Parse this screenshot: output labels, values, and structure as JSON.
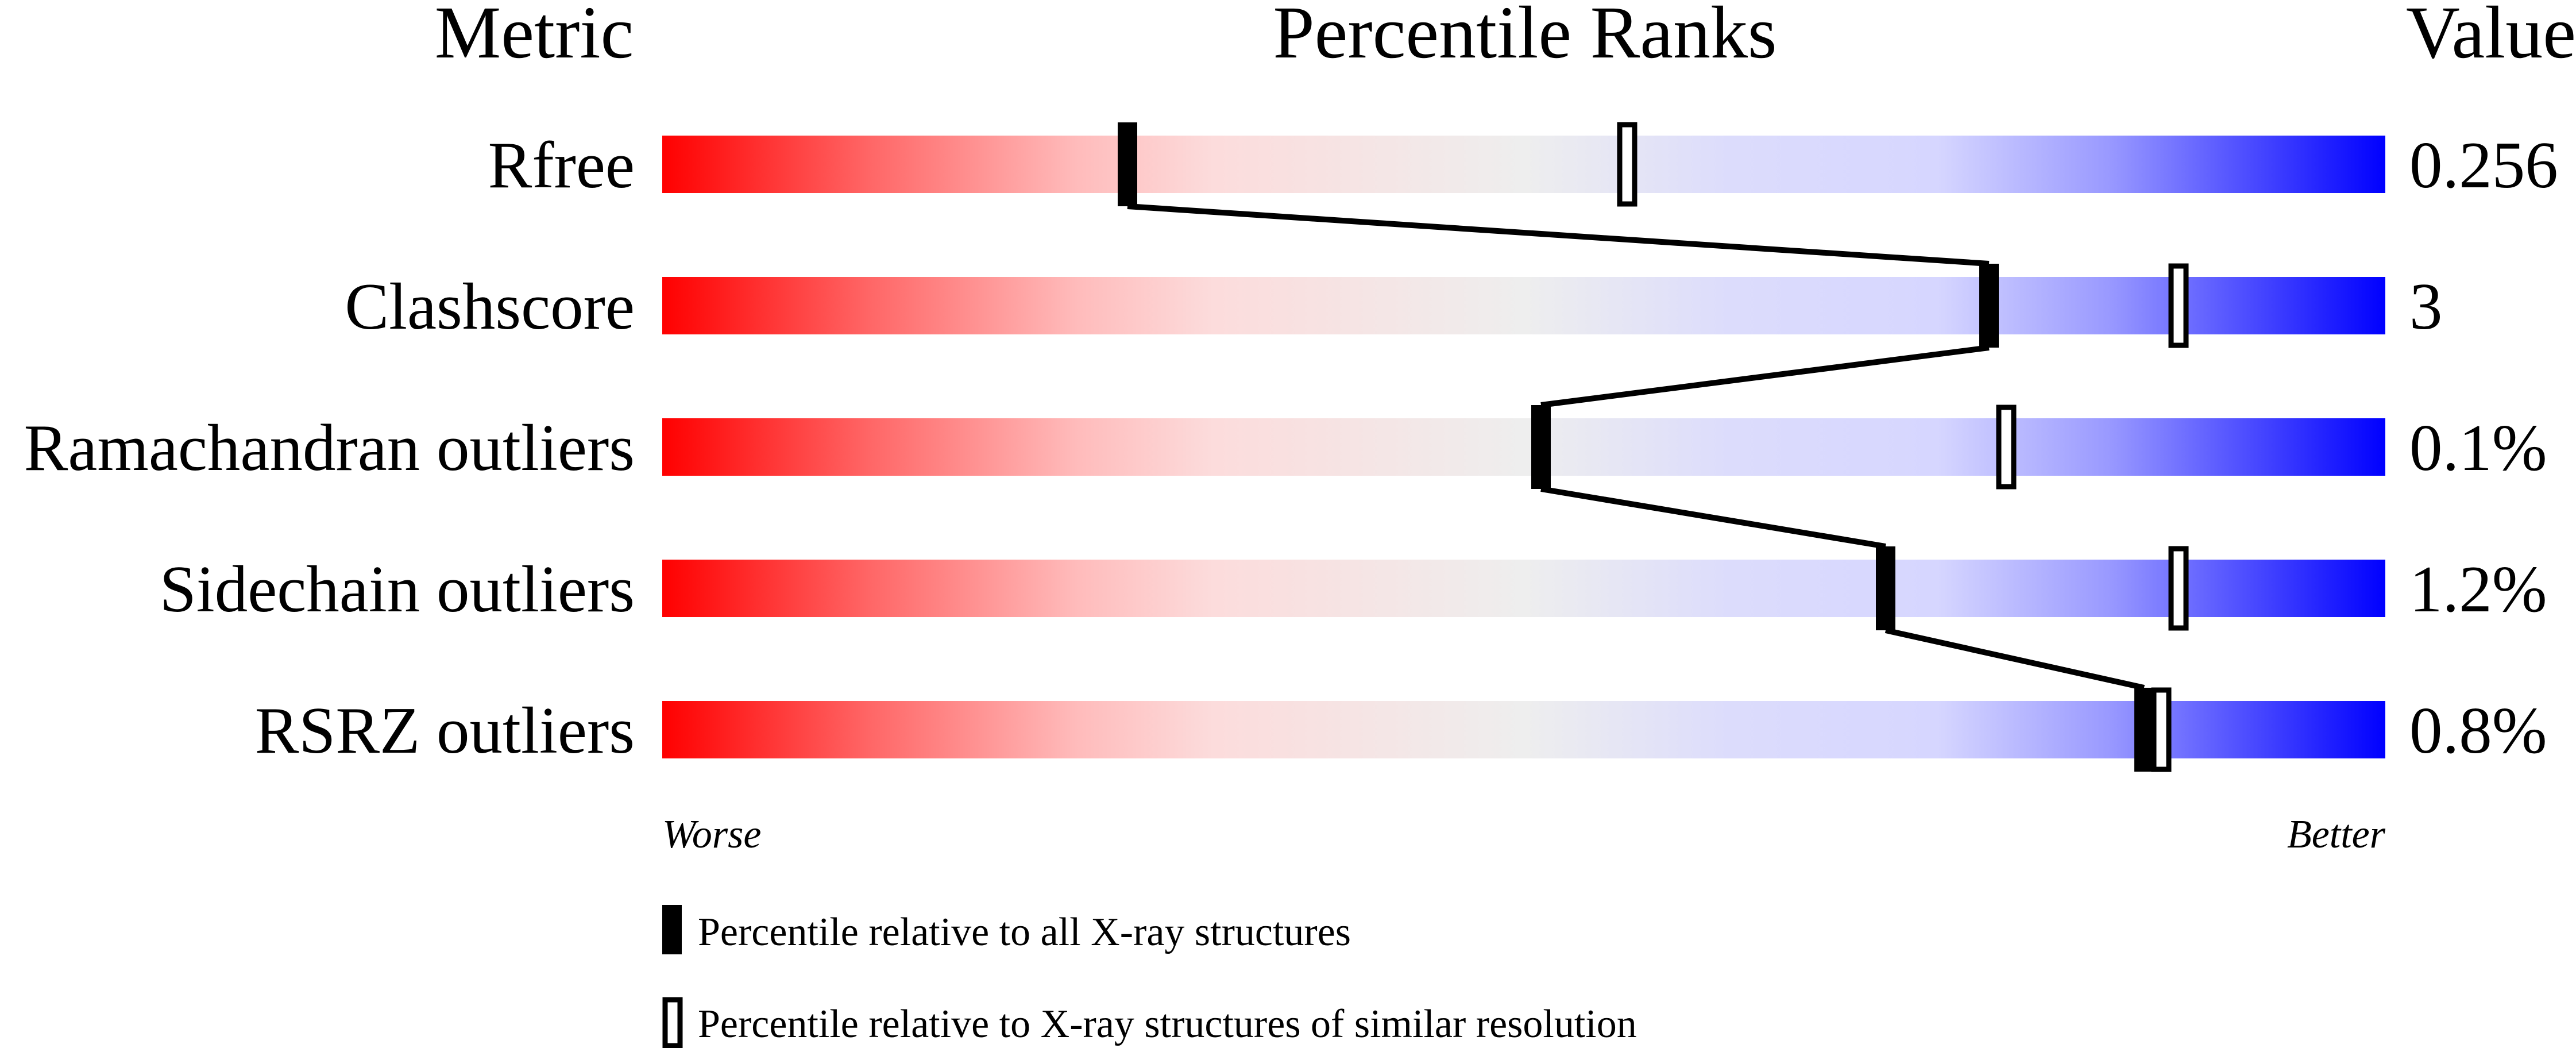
{
  "chart_data": {
    "type": "percentile-slider",
    "headers": {
      "metric": "Metric",
      "ranks": "Percentile Ranks",
      "value": "Value"
    },
    "axis_range": [
      0,
      100
    ],
    "axis_labels": {
      "left": "Worse",
      "right": "Better"
    },
    "gradient_colors": [
      "#ff0000",
      "#eeeeee",
      "#0000ff"
    ],
    "metrics": [
      {
        "name": "Rfree",
        "value": "0.256",
        "percentile_all": 27,
        "percentile_similar": 56
      },
      {
        "name": "Clashscore",
        "value": "3",
        "percentile_all": 77,
        "percentile_similar": 88
      },
      {
        "name": "Ramachandran outliers",
        "value": "0.1%",
        "percentile_all": 51,
        "percentile_similar": 78
      },
      {
        "name": "Sidechain outliers",
        "value": "1.2%",
        "percentile_all": 71,
        "percentile_similar": 88
      },
      {
        "name": "RSRZ outliers",
        "value": "0.8%",
        "percentile_all": 86,
        "percentile_similar": 87
      }
    ],
    "legend": {
      "all": "Percentile relative to all X-ray structures",
      "similar": "Percentile relative to X-ray structures of similar resolution"
    }
  }
}
